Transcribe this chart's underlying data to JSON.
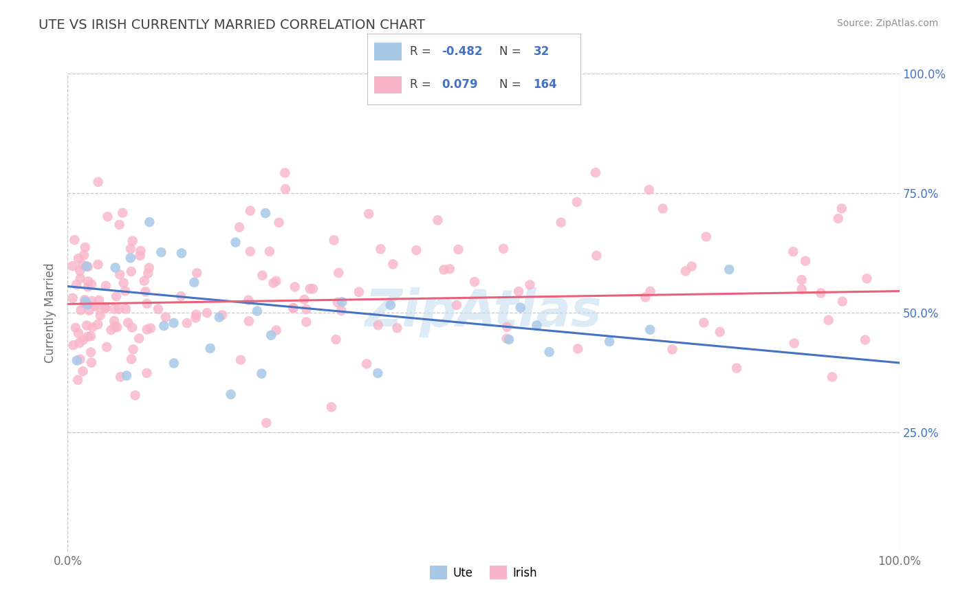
{
  "title": "UTE VS IRISH CURRENTLY MARRIED CORRELATION CHART",
  "source_text": "Source: ZipAtlas.com",
  "ylabel": "Currently Married",
  "watermark": "ZipAtlas",
  "legend_ute_R": "-0.482",
  "legend_ute_N": "32",
  "legend_irish_R": "0.079",
  "legend_irish_N": "164",
  "ute_color": "#a8c8e8",
  "irish_color": "#f8b4c8",
  "ute_line_color": "#4472c4",
  "irish_line_color": "#e8607a",
  "background_color": "#ffffff",
  "grid_color": "#c8c8c8",
  "title_color": "#404040",
  "legend_text_color": "#4472c4",
  "tick_color": "#4472c4",
  "source_color": "#909090",
  "xlim": [
    0.0,
    1.0
  ],
  "ylim": [
    0.0,
    1.0
  ],
  "ute_trend_x": [
    0.0,
    1.0
  ],
  "ute_trend_y": [
    0.555,
    0.395
  ],
  "irish_trend_x": [
    0.0,
    1.0
  ],
  "irish_trend_y": [
    0.518,
    0.545
  ]
}
